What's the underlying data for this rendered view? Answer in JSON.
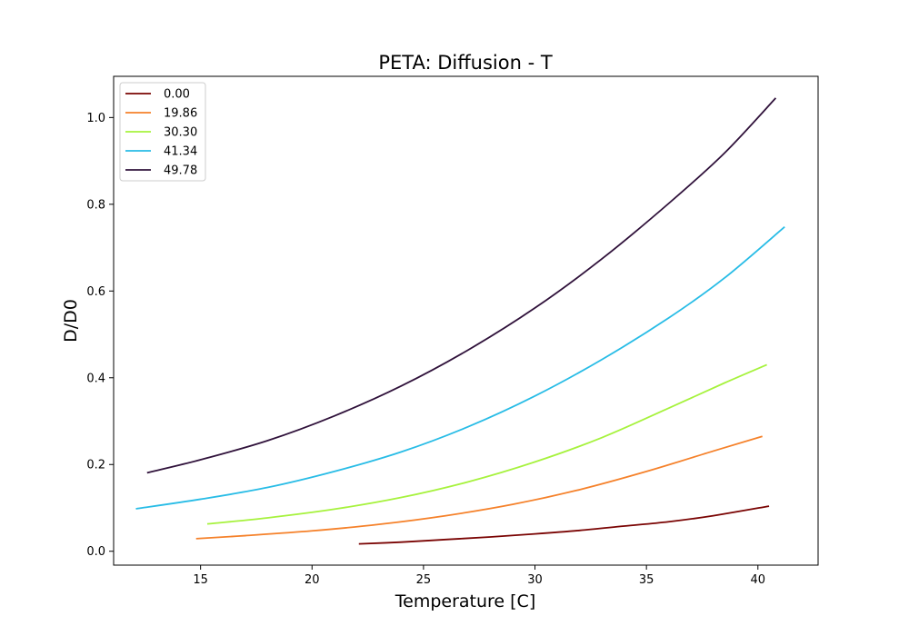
{
  "chart_data": {
    "type": "line",
    "title": "PETA: Diffusion - T",
    "xlabel": "Temperature [C]",
    "ylabel": "D/D0",
    "xlim": [
      11.1,
      42.7
    ],
    "ylim": [
      -0.032,
      1.095
    ],
    "xticks": [
      15,
      20,
      25,
      30,
      35,
      40
    ],
    "yticks": [
      0.0,
      0.2,
      0.4,
      0.6,
      0.8,
      1.0
    ],
    "xtick_labels": [
      "15",
      "20",
      "25",
      "30",
      "35",
      "40"
    ],
    "ytick_labels": [
      "0.0",
      "0.2",
      "0.4",
      "0.6",
      "0.8",
      "1.0"
    ],
    "grid": false,
    "legend_position": "top-left",
    "series": [
      {
        "name": "0.00",
        "color": "#7a0403",
        "x": [
          22.1,
          24,
          26,
          28,
          30,
          32,
          34,
          36,
          38,
          40.5
        ],
        "y": [
          0.017,
          0.021,
          0.027,
          0.033,
          0.04,
          0.048,
          0.058,
          0.068,
          0.082,
          0.104
        ]
      },
      {
        "name": "19.86",
        "color": "#f5812a",
        "x": [
          14.8,
          17,
          20,
          23,
          26,
          29,
          32,
          35,
          38,
          40.2
        ],
        "y": [
          0.029,
          0.036,
          0.047,
          0.062,
          0.082,
          0.108,
          0.142,
          0.184,
          0.231,
          0.265
        ]
      },
      {
        "name": "30.30",
        "color": "#a6f23d",
        "x": [
          15.3,
          18,
          21,
          24,
          27,
          30,
          33,
          36,
          38.5,
          40.4
        ],
        "y": [
          0.063,
          0.077,
          0.097,
          0.124,
          0.16,
          0.206,
          0.262,
          0.33,
          0.388,
          0.43
        ]
      },
      {
        "name": "41.34",
        "color": "#28bce6",
        "x": [
          12.1,
          15,
          18,
          21,
          24,
          27,
          30,
          33,
          36,
          38.5,
          41.2
        ],
        "y": [
          0.098,
          0.12,
          0.147,
          0.184,
          0.229,
          0.287,
          0.358,
          0.442,
          0.538,
          0.63,
          0.748
        ]
      },
      {
        "name": "49.78",
        "color": "#30123b",
        "x": [
          12.6,
          15,
          18,
          21,
          24,
          27,
          30,
          33,
          36,
          38.5,
          40.8
        ],
        "y": [
          0.181,
          0.211,
          0.255,
          0.312,
          0.381,
          0.464,
          0.561,
          0.674,
          0.802,
          0.918,
          1.045
        ]
      }
    ]
  }
}
